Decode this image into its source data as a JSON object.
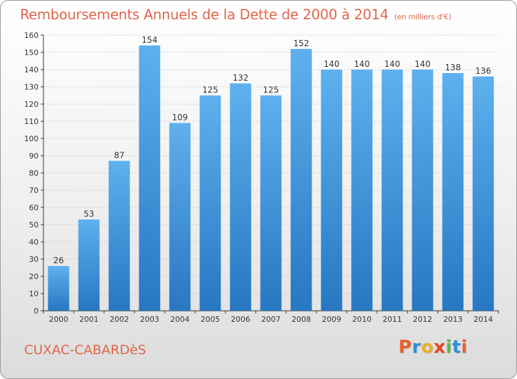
{
  "title": "Remboursements Annuels de la Dette de 2000 à 2014",
  "unit": "(en milliers d'€)",
  "city": "CUXAC-CABARDèS",
  "logo": {
    "letters": [
      "P",
      "r",
      "o",
      "x",
      "i",
      "t",
      "i"
    ],
    "colors": [
      "#e8612c",
      "#2f8fd8",
      "#e8b12c",
      "#e8432c",
      "#57b84a",
      "#2f8fd8",
      "#e8612c"
    ]
  },
  "colors": {
    "bar": "#3d8fdb",
    "title": "#e0664a",
    "grid": "#cfcfcf",
    "axis": "#333333"
  },
  "chart_data": {
    "type": "bar",
    "categories": [
      "2000",
      "2001",
      "2002",
      "2003",
      "2004",
      "2005",
      "2006",
      "2007",
      "2008",
      "2009",
      "2010",
      "2011",
      "2012",
      "2013",
      "2014"
    ],
    "values": [
      26,
      53,
      87,
      154,
      109,
      125,
      132,
      125,
      152,
      140,
      140,
      140,
      140,
      138,
      136
    ],
    "ylim": [
      0,
      160
    ],
    "ytick_step": 10,
    "grid": true,
    "data_labels": true
  }
}
